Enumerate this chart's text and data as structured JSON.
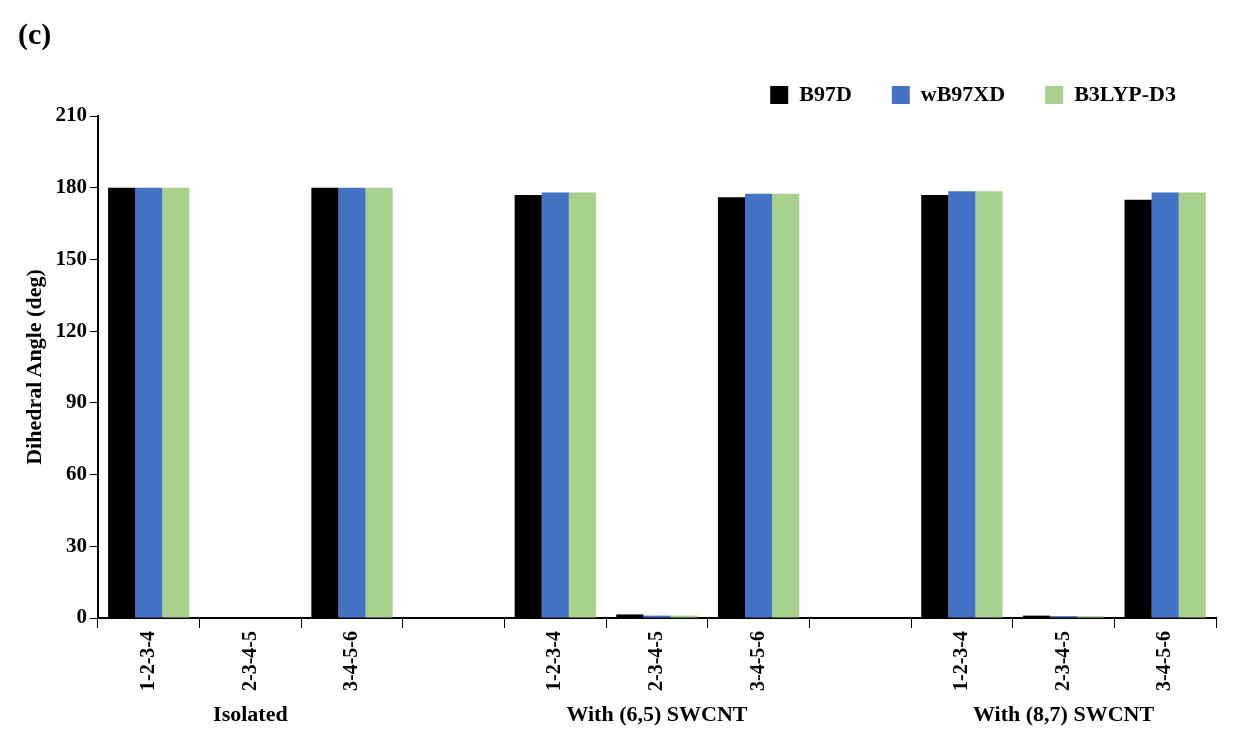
{
  "chart_data": {
    "type": "bar",
    "title": "(c)",
    "ylabel": "Dihedral Angle (deg)",
    "categories": [
      "1-2-3-4",
      "2-3-4-5",
      "3-4-5-6",
      null,
      "1-2-3-4",
      "2-3-4-5",
      "3-4-5-6",
      null,
      "1-2-3-4",
      "2-3-4-5",
      "3-4-5-6"
    ],
    "series": [
      {
        "name": "B97D",
        "color": "#000000",
        "values": [
          180,
          0,
          180,
          null,
          177,
          1.5,
          176,
          null,
          177,
          1,
          175
        ]
      },
      {
        "name": "wB97XD",
        "color": "#4472c4",
        "values": [
          180,
          0,
          180,
          null,
          178,
          1,
          177.5,
          null,
          178.5,
          0.8,
          178
        ]
      },
      {
        "name": "B3LYP-D3",
        "color": "#a9d18e",
        "values": [
          180,
          0,
          180,
          null,
          178,
          1,
          177.5,
          null,
          178.5,
          0.8,
          178
        ]
      }
    ],
    "annotations": [
      "Isolated",
      "With (6,5) SWCNT",
      "With (8,7) SWCNT"
    ],
    "ylim": [
      0,
      210
    ],
    "yticks": [
      0,
      30,
      60,
      90,
      120,
      150,
      180,
      210
    ],
    "grid": false,
    "legend": "top right"
  }
}
